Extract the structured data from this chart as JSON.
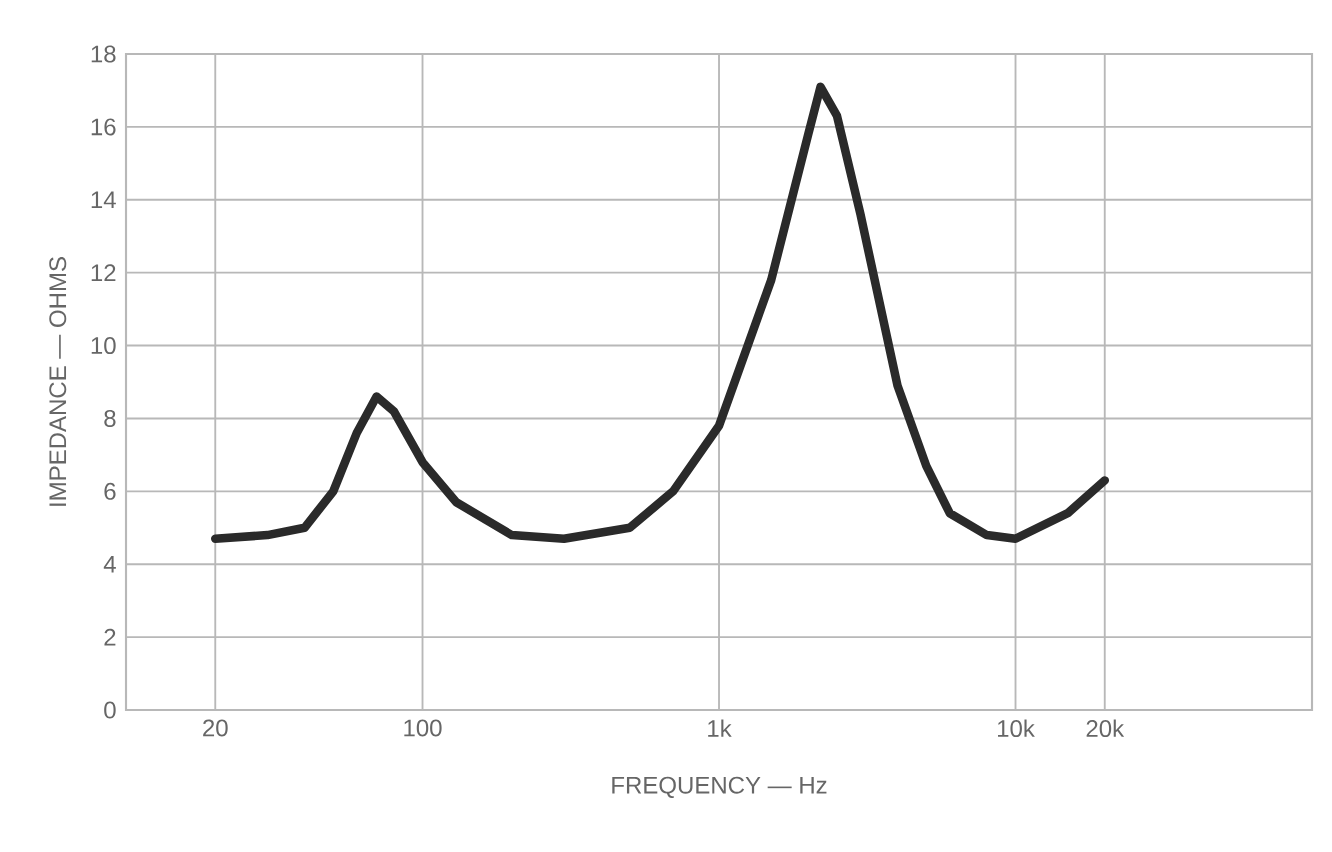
{
  "chart_data": {
    "type": "line",
    "xlabel": "FREQUENCY — Hz",
    "ylabel": "IMPEDANCE — OHMS",
    "log": "x",
    "grid": true,
    "marker": "none",
    "line_style": "solid",
    "xlim": [
      10,
      100000
    ],
    "ylim": [
      0,
      18
    ],
    "xticks": [
      {
        "value": 20,
        "label": "20"
      },
      {
        "value": 100,
        "label": "100"
      },
      {
        "value": 1000,
        "label": "1k"
      },
      {
        "value": 10000,
        "label": "10k"
      },
      {
        "value": 20000,
        "label": "20k"
      }
    ],
    "yticks": [
      0,
      2,
      4,
      6,
      8,
      10,
      12,
      14,
      16,
      18
    ],
    "series": [
      {
        "color": "#2a2a2a",
        "x": [
          20,
          30,
          40,
          50,
          60,
          70,
          80,
          100,
          130,
          200,
          300,
          500,
          700,
          1000,
          1500,
          2000,
          2200,
          2500,
          3000,
          4000,
          5000,
          6000,
          8000,
          10000,
          15000,
          20000
        ],
        "values": [
          4.7,
          4.8,
          5.0,
          6.0,
          7.6,
          8.6,
          8.2,
          6.8,
          5.7,
          4.8,
          4.7,
          5.0,
          6.0,
          7.8,
          11.8,
          15.8,
          17.1,
          16.3,
          13.6,
          8.9,
          6.7,
          5.4,
          4.8,
          4.7,
          5.4,
          6.3
        ]
      }
    ]
  }
}
